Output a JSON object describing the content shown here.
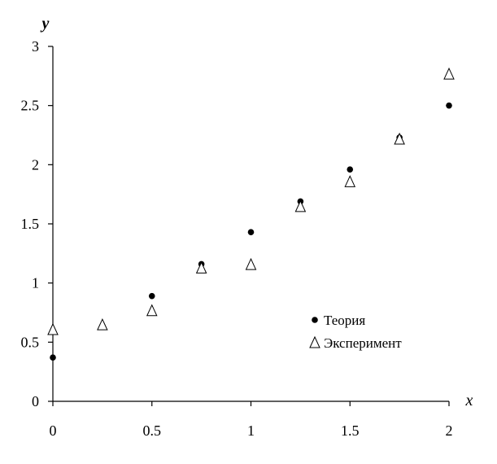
{
  "chart_data": {
    "type": "scatter",
    "title": "",
    "xlabel": "x",
    "ylabel": "y",
    "xlim": [
      0,
      2
    ],
    "ylim": [
      0,
      3
    ],
    "xticks": [
      0,
      0.5,
      1,
      1.5,
      2
    ],
    "xtick_labels": [
      "0",
      "0.5",
      "1",
      "1.5",
      "2"
    ],
    "yticks": [
      0,
      0.5,
      1,
      1.5,
      2,
      2.5,
      3
    ],
    "ytick_labels": [
      "0",
      "0.5",
      "1",
      "1.5",
      "2",
      "2.5",
      "3"
    ],
    "grid": false,
    "legend_position": "lower-right",
    "series": [
      {
        "name": "Теория",
        "marker": "filled-circle",
        "color": "#000000",
        "x": [
          0,
          0.25,
          0.5,
          0.75,
          1,
          1.25,
          1.5,
          1.75,
          2
        ],
        "y": [
          0.37,
          0.63,
          0.89,
          1.16,
          1.43,
          1.69,
          1.96,
          2.23,
          2.5
        ]
      },
      {
        "name": "Эксперимент",
        "marker": "open-triangle",
        "color": "#000000",
        "x": [
          0,
          0.25,
          0.5,
          0.75,
          1,
          1.25,
          1.5,
          1.75,
          2
        ],
        "y": [
          0.6,
          0.64,
          0.76,
          1.12,
          1.15,
          1.64,
          1.85,
          2.21,
          2.76
        ]
      }
    ]
  }
}
